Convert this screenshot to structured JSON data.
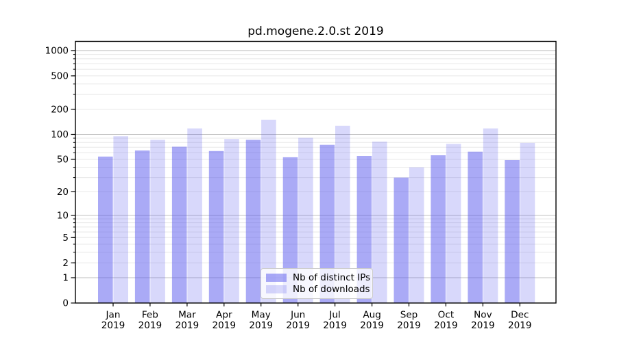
{
  "title": "pd.mogene.2.0.st 2019",
  "chart_data": {
    "type": "bar",
    "title": "pd.mogene.2.0.st 2019",
    "scale": "log10(1+y) (symlog-like, 0 shown at baseline)",
    "grid": true,
    "legend_position": "bottom-center-inside",
    "categories": [
      "Jan 2019",
      "Feb 2019",
      "Mar 2019",
      "Apr 2019",
      "May 2019",
      "Jun 2019",
      "Jul 2019",
      "Aug 2019",
      "Sep 2019",
      "Oct 2019",
      "Nov 2019",
      "Dec 2019"
    ],
    "y_ticks": [
      1000,
      500,
      200,
      100,
      50,
      20,
      10,
      5,
      2,
      1,
      0
    ],
    "ylim": [
      0,
      1200
    ],
    "xlabel": "",
    "ylabel": "",
    "series": [
      {
        "name": "Nb of distinct IPs",
        "color": "#5555ee",
        "alpha": 0.5,
        "values": [
          54,
          64,
          71,
          63,
          86,
          53,
          75,
          55,
          30,
          56,
          62,
          49
        ]
      },
      {
        "name": "Nb of downloads",
        "color": "#5555ee",
        "alpha": 0.23,
        "values": [
          95,
          86,
          118,
          88,
          150,
          91,
          127,
          82,
          40,
          77,
          118,
          79
        ]
      }
    ],
    "colors": {
      "bar_ips_rendered": "#aaaaf4",
      "bar_downloads_rendered": "#d9d9fa",
      "grid_major": "#bfbfbf",
      "grid_minor": "#e8e8e8",
      "axis": "#000000"
    }
  }
}
